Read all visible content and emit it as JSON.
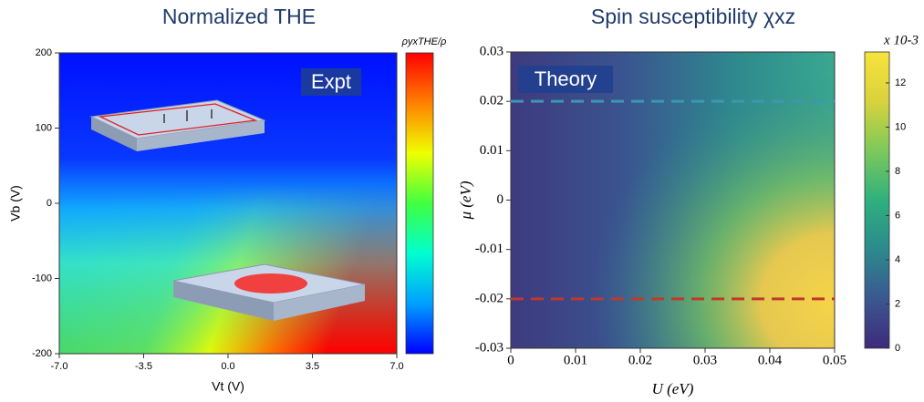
{
  "chart_data": [
    {
      "type": "heatmap",
      "title": "Normalized THE",
      "x_label": "Vt (V)",
      "y_label": "Vb (V)",
      "annotation": "Expt",
      "colorbar_label": "ρyxTHE/ρ",
      "colormap": [
        "#0000ff",
        "#00a0ff",
        "#00ffd0",
        "#40ff40",
        "#f0ff00",
        "#ff8000",
        "#ff0000"
      ],
      "xlim": [
        -7,
        7
      ],
      "xticks": [
        {
          "value": -7,
          "label": "-7.0"
        },
        {
          "value": -3.5,
          "label": "-3.5"
        },
        {
          "value": 0,
          "label": "0.0"
        },
        {
          "value": 3.5,
          "label": "3.5"
        },
        {
          "value": 7,
          "label": "7.0"
        }
      ],
      "ylim": [
        -200,
        200
      ],
      "yticks": [
        -200,
        -100,
        0,
        100,
        200
      ]
    },
    {
      "type": "heatmap",
      "title": "Spin susceptibility χxz",
      "x_label": "U (eV)",
      "y_label": "μ (eV)",
      "annotation": "Theory",
      "colorbar_label": "x 10-3",
      "colormap": [
        "#3e2a7c",
        "#3b5790",
        "#2c8a8e",
        "#2fb07e",
        "#7cc95a",
        "#d9d23c",
        "#f7e33c"
      ],
      "clim": [
        0,
        13.4
      ],
      "cticks": [
        0,
        2,
        4,
        6,
        8,
        10,
        12
      ],
      "xlim": [
        0,
        0.05
      ],
      "xticks": [
        0,
        0.01,
        0.02,
        0.03,
        0.04,
        0.05
      ],
      "ylim": [
        -0.03,
        0.03
      ],
      "yticks": [
        -0.03,
        -0.02,
        -0.01,
        0,
        0.01,
        0.02,
        0.03
      ],
      "hlines": [
        {
          "value": 0.02,
          "color": "#3a98b0"
        },
        {
          "value": -0.02,
          "color": "#c0392b"
        }
      ]
    }
  ]
}
